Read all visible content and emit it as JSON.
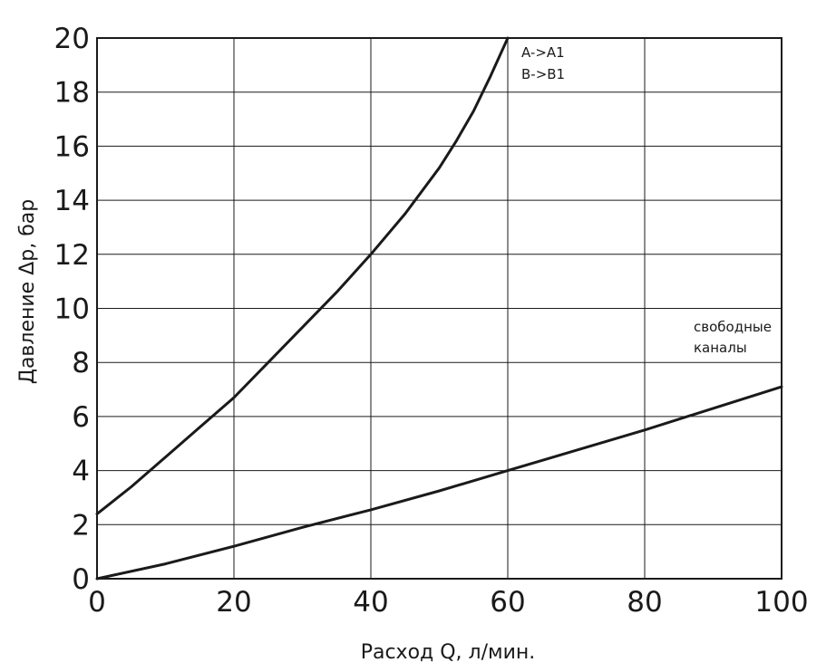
{
  "chart_data": {
    "type": "line",
    "title": "",
    "xlabel": "Расход Q, л/мин.",
    "ylabel": "Давление Δp, бар",
    "xlim": [
      0,
      100
    ],
    "ylim": [
      0,
      20
    ],
    "xticks": [
      0,
      20,
      40,
      60,
      80,
      100
    ],
    "yticks": [
      0,
      2,
      4,
      6,
      8,
      10,
      12,
      14,
      16,
      18,
      20
    ],
    "grid": true,
    "series": [
      {
        "x": [
          0,
          5,
          10,
          15,
          20,
          25,
          30,
          35,
          40,
          45,
          50,
          52.5,
          55,
          57.5,
          60
        ],
        "y": [
          2.4,
          3.4,
          4.5,
          5.6,
          6.7,
          8.0,
          9.3,
          10.6,
          12.0,
          13.5,
          15.2,
          16.2,
          17.3,
          18.6,
          20.0
        ]
      },
      {
        "x": [
          0,
          10,
          20,
          30,
          40,
          50,
          60,
          70,
          80,
          90,
          100
        ],
        "y": [
          0.0,
          0.55,
          1.2,
          1.9,
          2.55,
          3.25,
          4.0,
          4.75,
          5.5,
          6.3,
          7.1
        ]
      }
    ],
    "annotations": [
      {
        "lines": [
          "A->A1",
          "B->B1"
        ],
        "anchor": "upper-curve"
      },
      {
        "lines": [
          "свободные",
          "каналы"
        ],
        "anchor": "lower-curve"
      }
    ]
  }
}
